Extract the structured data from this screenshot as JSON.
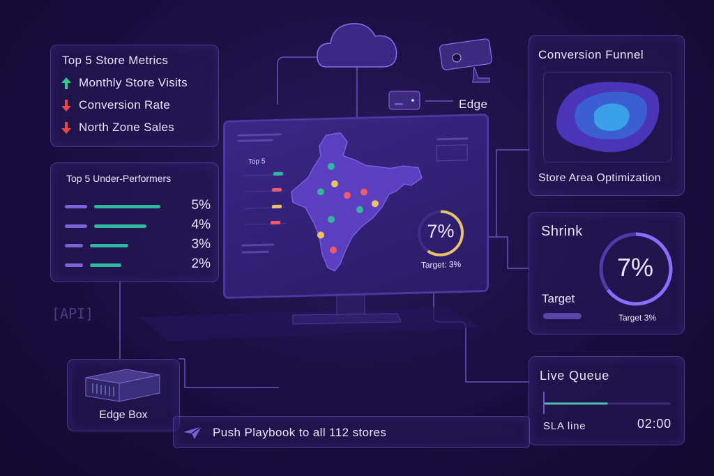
{
  "metrics": {
    "title": "Top 5 Store Metrics",
    "items": [
      {
        "label": "Monthly Store Visits",
        "trend": "up",
        "color": "#2ecc8f"
      },
      {
        "label": "Conversion Rate",
        "trend": "down",
        "color": "#f0434a"
      },
      {
        "label": "North Zone Sales",
        "trend": "down",
        "color": "#f0434a"
      }
    ]
  },
  "underperformers": {
    "title": "Top 5 Under-Performers",
    "rows": [
      {
        "pct": "5%",
        "level": 0.95
      },
      {
        "pct": "4%",
        "level": 0.75
      },
      {
        "pct": "3%",
        "level": 0.55
      },
      {
        "pct": "2%",
        "level": 0.45
      }
    ]
  },
  "edge": {
    "label": "Edge"
  },
  "monitor": {
    "top5_label": "Top 5",
    "percent": "7%",
    "target": "Target: 3%",
    "ring_fraction": 0.6
  },
  "api_label": "[API]",
  "funnel": {
    "title": "Conversion Funnel",
    "subtitle": "Store Area Optimization"
  },
  "shrink": {
    "title": "Shrink",
    "percent": "7%",
    "target_label": "Target",
    "target_value": "Target 3%"
  },
  "queue": {
    "title": "Live Queue",
    "sla": "SLA line",
    "time": "02:00",
    "progress": 0.5
  },
  "edge_box": {
    "label": "Edge Box"
  },
  "push": {
    "label": "Push Playbook to all 112 stores"
  },
  "colors": {
    "accent": "#7a63d8",
    "teal": "#2fb7a0",
    "ring": "#e8c36a",
    "background": "#1b1044"
  }
}
